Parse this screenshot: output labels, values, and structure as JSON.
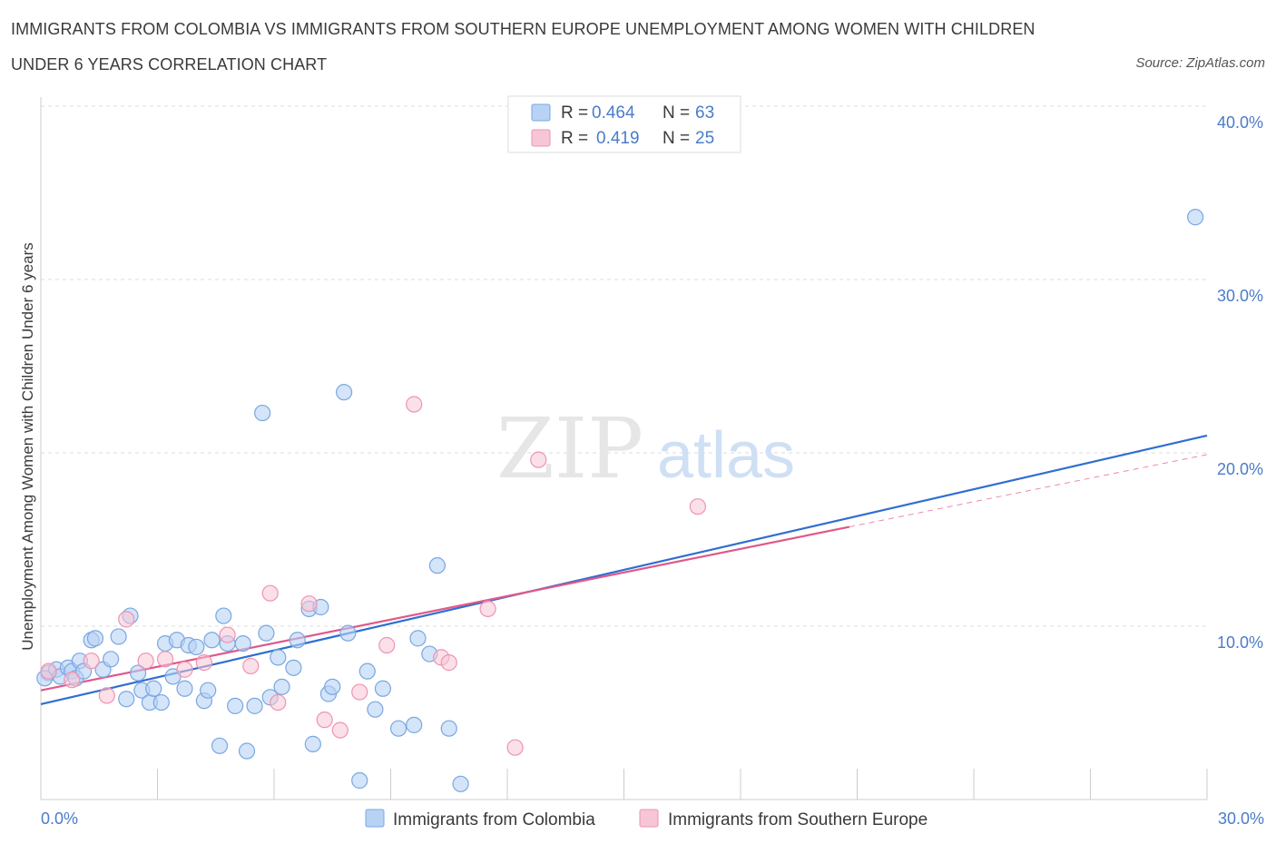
{
  "header": {
    "title_line1": "IMMIGRANTS FROM COLOMBIA VS IMMIGRANTS FROM SOUTHERN EUROPE UNEMPLOYMENT AMONG WOMEN WITH CHILDREN",
    "title_line2": "UNDER 6 YEARS CORRELATION CHART",
    "source": "Source: ZipAtlas.com"
  },
  "watermark": {
    "part1": "ZIP",
    "part2": "atlas"
  },
  "legend": {
    "rows": [
      {
        "r_label": "R =",
        "r_value": "0.464",
        "n_label": "N =",
        "n_value": "63"
      },
      {
        "r_label": "R =",
        "r_value": "0.419",
        "n_label": "N =",
        "n_value": "25"
      }
    ]
  },
  "colors": {
    "blue_fill": "#b8d2f5",
    "blue_stroke": "#7aa7e0",
    "blue_line": "#2f6fcf",
    "pink_fill": "#f7c6d6",
    "pink_stroke": "#ee93b2",
    "pink_line": "#e0588a",
    "accent_text": "#4a7cc9"
  },
  "chart_data": {
    "type": "scatter",
    "xlabel": "",
    "ylabel": "Unemployment Among Women with Children Under 6 years",
    "x_tick_labels": [
      "0.0%",
      "30.0%"
    ],
    "y_tick_labels": [
      "10.0%",
      "20.0%",
      "30.0%",
      "40.0%"
    ],
    "xlim": [
      0,
      30
    ],
    "ylim": [
      0,
      40
    ],
    "grid": true,
    "legend_position": "top-center",
    "series": [
      {
        "name": "Immigrants from Colombia",
        "color": "#b8d2f5",
        "points": [
          [
            0.2,
            7.3
          ],
          [
            0.4,
            7.5
          ],
          [
            0.5,
            7.1
          ],
          [
            0.7,
            7.6
          ],
          [
            0.8,
            7.4
          ],
          [
            0.9,
            7.0
          ],
          [
            1.0,
            8.0
          ],
          [
            1.1,
            7.4
          ],
          [
            1.3,
            9.2
          ],
          [
            1.4,
            9.3
          ],
          [
            1.6,
            7.5
          ],
          [
            1.8,
            8.1
          ],
          [
            2.0,
            9.4
          ],
          [
            2.2,
            5.8
          ],
          [
            2.3,
            10.6
          ],
          [
            2.5,
            7.3
          ],
          [
            2.6,
            6.3
          ],
          [
            2.8,
            5.6
          ],
          [
            2.9,
            6.4
          ],
          [
            3.1,
            5.6
          ],
          [
            3.2,
            9.0
          ],
          [
            3.4,
            7.1
          ],
          [
            3.5,
            9.2
          ],
          [
            3.7,
            6.4
          ],
          [
            3.8,
            8.9
          ],
          [
            4.0,
            8.8
          ],
          [
            4.2,
            5.7
          ],
          [
            4.3,
            6.3
          ],
          [
            4.4,
            9.2
          ],
          [
            4.6,
            3.1
          ],
          [
            4.7,
            10.6
          ],
          [
            4.8,
            9.0
          ],
          [
            5.0,
            5.4
          ],
          [
            5.2,
            9.0
          ],
          [
            5.3,
            2.8
          ],
          [
            5.5,
            5.4
          ],
          [
            5.7,
            22.3
          ],
          [
            5.8,
            9.6
          ],
          [
            5.9,
            5.9
          ],
          [
            6.1,
            8.2
          ],
          [
            6.2,
            6.5
          ],
          [
            6.5,
            7.6
          ],
          [
            6.6,
            9.2
          ],
          [
            6.9,
            11.0
          ],
          [
            7.0,
            3.2
          ],
          [
            7.2,
            11.1
          ],
          [
            7.4,
            6.1
          ],
          [
            7.5,
            6.5
          ],
          [
            7.8,
            23.5
          ],
          [
            7.9,
            9.6
          ],
          [
            8.2,
            1.1
          ],
          [
            8.4,
            7.4
          ],
          [
            8.6,
            5.2
          ],
          [
            8.8,
            6.4
          ],
          [
            9.2,
            4.1
          ],
          [
            9.6,
            4.3
          ],
          [
            9.7,
            9.3
          ],
          [
            10.0,
            8.4
          ],
          [
            10.2,
            13.5
          ],
          [
            10.5,
            4.1
          ],
          [
            10.8,
            0.9
          ],
          [
            29.7,
            33.6
          ],
          [
            0.1,
            7.0
          ]
        ]
      },
      {
        "name": "Immigrants from Southern Europe",
        "color": "#f7c6d6",
        "points": [
          [
            0.2,
            7.4
          ],
          [
            0.8,
            6.9
          ],
          [
            1.3,
            8.0
          ],
          [
            1.7,
            6.0
          ],
          [
            2.2,
            10.4
          ],
          [
            2.7,
            8.0
          ],
          [
            3.2,
            8.1
          ],
          [
            3.7,
            7.5
          ],
          [
            4.2,
            7.9
          ],
          [
            4.8,
            9.5
          ],
          [
            5.4,
            7.7
          ],
          [
            5.9,
            11.9
          ],
          [
            6.1,
            5.6
          ],
          [
            6.9,
            11.3
          ],
          [
            7.3,
            4.6
          ],
          [
            7.7,
            4.0
          ],
          [
            8.2,
            6.2
          ],
          [
            8.9,
            8.9
          ],
          [
            9.6,
            22.8
          ],
          [
            10.3,
            8.2
          ],
          [
            10.5,
            7.9
          ],
          [
            11.5,
            11.0
          ],
          [
            12.2,
            3.0
          ],
          [
            12.8,
            19.6
          ],
          [
            16.9,
            16.9
          ]
        ]
      }
    ],
    "trendlines": [
      {
        "series": "Immigrants from Colombia",
        "x": [
          0,
          30
        ],
        "y": [
          5.5,
          21.0
        ]
      },
      {
        "series": "Immigrants from Southern Europe",
        "x": [
          0,
          30
        ],
        "y": [
          6.3,
          19.9
        ]
      }
    ]
  },
  "bottom_legend": {
    "items": [
      "Immigrants from Colombia",
      "Immigrants from Southern Europe"
    ]
  }
}
